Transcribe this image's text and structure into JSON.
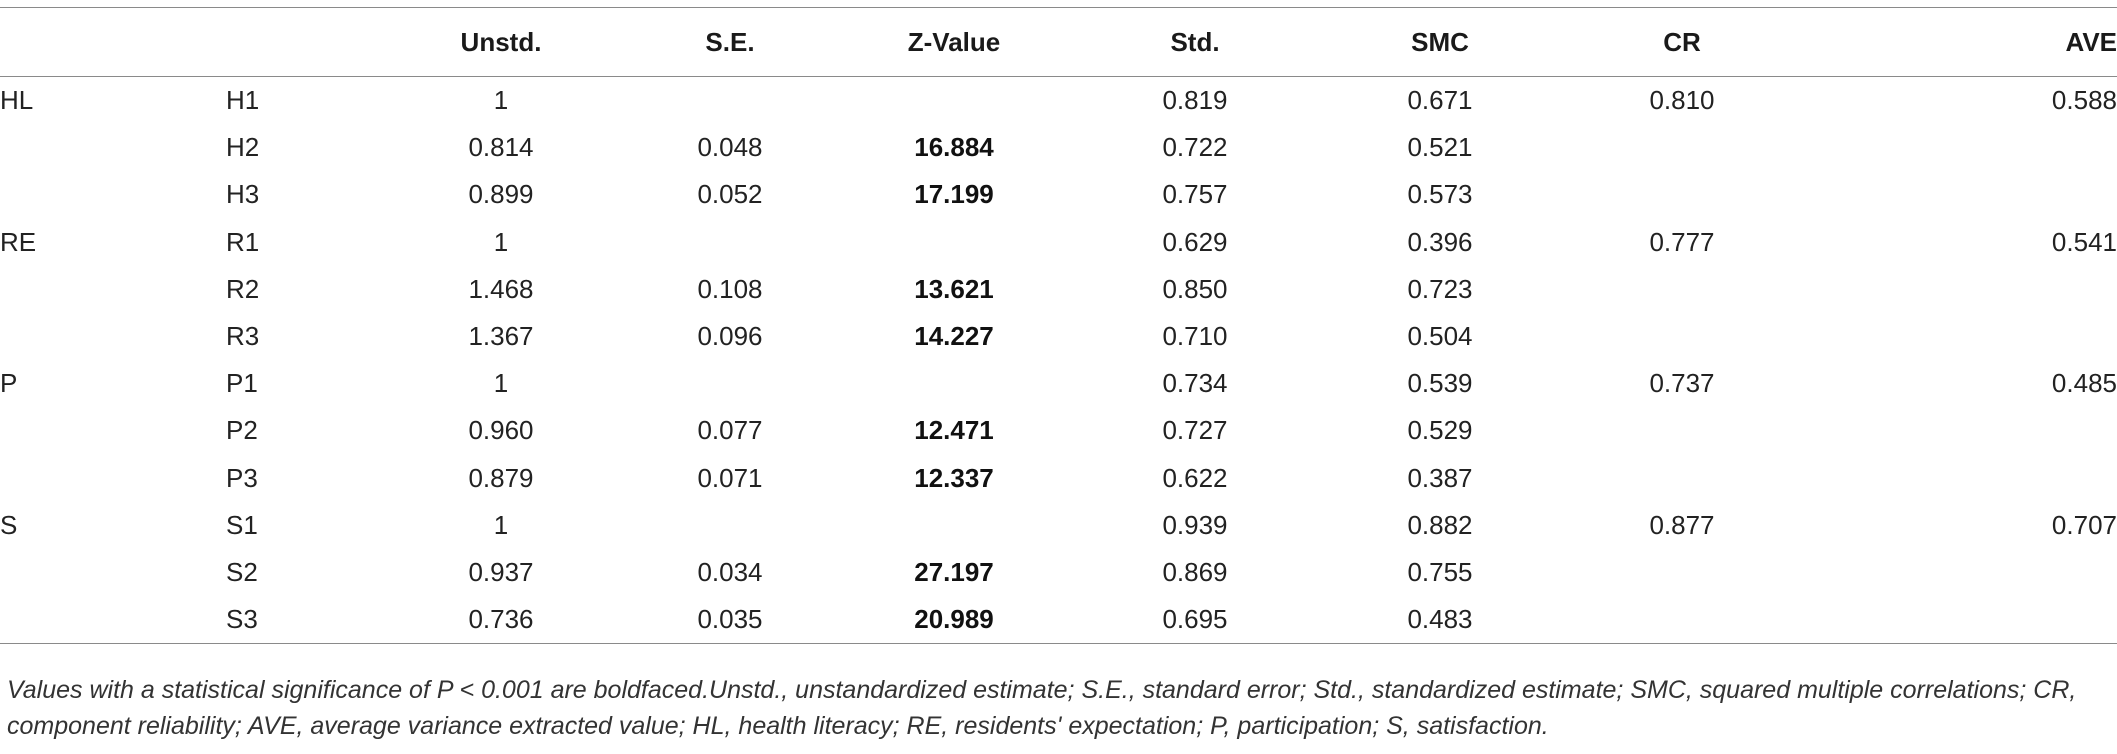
{
  "table": {
    "headers": [
      "",
      "",
      "Unstd.",
      "S.E.",
      "Z-Value",
      "Std.",
      "SMC",
      "CR",
      "AVE"
    ],
    "rows": [
      {
        "group": "HL",
        "item": "H1",
        "unstd": "1",
        "se": "",
        "z": "",
        "std": "0.819",
        "smc": "0.671",
        "cr": "0.810",
        "ave": "0.588"
      },
      {
        "group": "",
        "item": "H2",
        "unstd": "0.814",
        "se": "0.048",
        "z": "16.884",
        "std": "0.722",
        "smc": "0.521",
        "cr": "",
        "ave": ""
      },
      {
        "group": "",
        "item": "H3",
        "unstd": "0.899",
        "se": "0.052",
        "z": "17.199",
        "std": "0.757",
        "smc": "0.573",
        "cr": "",
        "ave": ""
      },
      {
        "group": "RE",
        "item": "R1",
        "unstd": "1",
        "se": "",
        "z": "",
        "std": "0.629",
        "smc": "0.396",
        "cr": "0.777",
        "ave": "0.541"
      },
      {
        "group": "",
        "item": "R2",
        "unstd": "1.468",
        "se": "0.108",
        "z": "13.621",
        "std": "0.850",
        "smc": "0.723",
        "cr": "",
        "ave": ""
      },
      {
        "group": "",
        "item": "R3",
        "unstd": "1.367",
        "se": "0.096",
        "z": "14.227",
        "std": "0.710",
        "smc": "0.504",
        "cr": "",
        "ave": ""
      },
      {
        "group": "P",
        "item": "P1",
        "unstd": "1",
        "se": "",
        "z": "",
        "std": "0.734",
        "smc": "0.539",
        "cr": "0.737",
        "ave": "0.485"
      },
      {
        "group": "",
        "item": "P2",
        "unstd": "0.960",
        "se": "0.077",
        "z": "12.471",
        "std": "0.727",
        "smc": "0.529",
        "cr": "",
        "ave": ""
      },
      {
        "group": "",
        "item": "P3",
        "unstd": "0.879",
        "se": "0.071",
        "z": "12.337",
        "std": "0.622",
        "smc": "0.387",
        "cr": "",
        "ave": ""
      },
      {
        "group": "S",
        "item": "S1",
        "unstd": "1",
        "se": "",
        "z": "",
        "std": "0.939",
        "smc": "0.882",
        "cr": "0.877",
        "ave": "0.707"
      },
      {
        "group": "",
        "item": "S2",
        "unstd": "0.937",
        "se": "0.034",
        "z": "27.197",
        "std": "0.869",
        "smc": "0.755",
        "cr": "",
        "ave": ""
      },
      {
        "group": "",
        "item": "S3",
        "unstd": "0.736",
        "se": "0.035",
        "z": "20.989",
        "std": "0.695",
        "smc": "0.483",
        "cr": "",
        "ave": ""
      }
    ]
  },
  "footnote": "Values with a statistical significance of P < 0.001 are boldfaced.Unstd., unstandardized estimate; S.E., standard error; Std., standardized estimate; SMC, squared multiple correlations; CR, component reliability; AVE, average variance extracted value; HL, health literacy; RE, residents' expectation; P, participation; S, satisfaction."
}
